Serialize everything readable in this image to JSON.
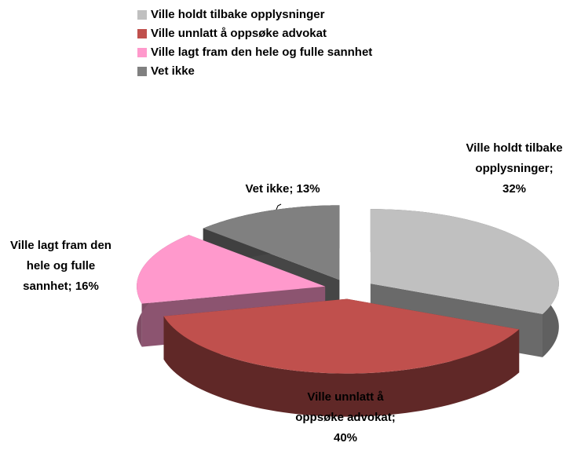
{
  "chart_data": {
    "type": "pie3d",
    "categories": [
      "Ville holdt tilbake opplysninger",
      "Ville unnlatt å oppsøke advokat",
      "Ville lagt fram den hele og fulle sannhet",
      "Vet ikke"
    ],
    "values": [
      32,
      40,
      16,
      13
    ],
    "value_labels": [
      "Ville holdt tilbake opplysninger; 32%",
      "Ville unnlatt å oppsøke advokat; 40%",
      "Ville lagt fram den hele og fulle sannhet; 16%",
      "Vet ikke; 13%"
    ],
    "colors": [
      "#c0c0c0",
      "#c0504d",
      "#ff99cc",
      "#808080"
    ],
    "legend": "top"
  }
}
